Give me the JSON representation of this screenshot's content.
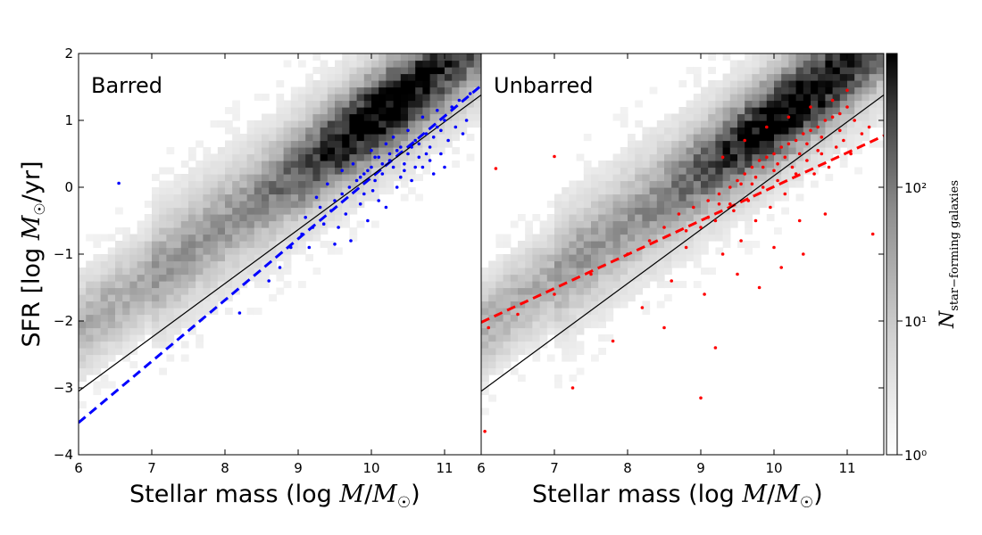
{
  "chart_data": [
    {
      "type": "scatter",
      "panel_label": "Barred",
      "panel_label_color": "#0000ff",
      "xlabel": "Stellar mass (log M/M☉)",
      "ylabel": "SFR [log M☉/yr]",
      "xlim": [
        6,
        11.5
      ],
      "ylim": [
        -4,
        2
      ],
      "xticks": [
        "6",
        "7",
        "8",
        "9",
        "10",
        "11"
      ],
      "yticks": [
        "−4",
        "−3",
        "−2",
        "−1",
        "0",
        "1",
        "2"
      ],
      "background": "2D histogram of star-forming galaxies (greyscale, log color scale)",
      "series": [
        {
          "name": "",
          "kind": "points",
          "color": "#0000ff",
          "points": [
            [
              6.55,
              0.06
            ],
            [
              8.2,
              -1.88
            ],
            [
              8.6,
              -1.4
            ],
            [
              8.75,
              -1.2
            ],
            [
              8.9,
              -0.9
            ],
            [
              9.05,
              -0.7
            ],
            [
              9.1,
              -0.45
            ],
            [
              9.2,
              -0.6
            ],
            [
              9.3,
              -0.3
            ],
            [
              9.35,
              -0.55
            ],
            [
              9.45,
              -0.35
            ],
            [
              9.5,
              -0.2
            ],
            [
              9.55,
              -0.6
            ],
            [
              9.6,
              -0.1
            ],
            [
              9.65,
              -0.4
            ],
            [
              9.7,
              0.0
            ],
            [
              9.72,
              -0.8
            ],
            [
              9.8,
              0.1
            ],
            [
              9.85,
              -0.25
            ],
            [
              9.9,
              0.2
            ],
            [
              9.95,
              -0.5
            ],
            [
              10.0,
              0.3
            ],
            [
              10.02,
              -0.05
            ],
            [
              10.05,
              0.1
            ],
            [
              10.1,
              0.45
            ],
            [
              10.15,
              0.2
            ],
            [
              10.2,
              -0.3
            ],
            [
              10.25,
              0.5
            ],
            [
              10.3,
              0.3
            ],
            [
              10.35,
              0.0
            ],
            [
              10.4,
              0.6
            ],
            [
              10.45,
              0.35
            ],
            [
              10.5,
              0.5
            ],
            [
              10.55,
              0.1
            ],
            [
              10.6,
              0.7
            ],
            [
              10.65,
              0.45
            ],
            [
              10.7,
              0.3
            ],
            [
              10.75,
              0.8
            ],
            [
              10.8,
              0.6
            ],
            [
              10.85,
              0.2
            ],
            [
              10.9,
              0.9
            ],
            [
              10.95,
              0.5
            ],
            [
              11.0,
              1.0
            ],
            [
              11.05,
              0.7
            ],
            [
              11.1,
              1.2
            ],
            [
              11.15,
              0.9
            ],
            [
              11.2,
              1.3
            ],
            [
              11.25,
              0.8
            ],
            [
              11.3,
              1.0
            ],
            [
              11.35,
              1.4
            ],
            [
              9.15,
              -0.9
            ],
            [
              9.25,
              -0.15
            ],
            [
              9.4,
              0.05
            ],
            [
              9.5,
              -0.85
            ],
            [
              9.6,
              0.25
            ],
            [
              9.75,
              0.35
            ],
            [
              9.9,
              -0.1
            ],
            [
              10.0,
              0.55
            ],
            [
              10.1,
              -0.2
            ],
            [
              10.2,
              0.65
            ],
            [
              10.3,
              0.75
            ],
            [
              10.4,
              0.15
            ],
            [
              10.5,
              0.85
            ],
            [
              10.6,
              0.3
            ],
            [
              10.7,
              1.05
            ],
            [
              10.8,
              0.4
            ],
            [
              10.9,
              1.15
            ],
            [
              11.0,
              0.3
            ],
            [
              10.25,
              0.4
            ],
            [
              10.35,
              0.55
            ],
            [
              10.45,
              0.25
            ],
            [
              10.55,
              0.6
            ],
            [
              10.15,
              0.35
            ],
            [
              10.05,
              0.45
            ],
            [
              9.95,
              0.25
            ],
            [
              9.85,
              0.15
            ],
            [
              10.65,
              0.65
            ],
            [
              10.75,
              0.5
            ],
            [
              10.85,
              0.75
            ],
            [
              10.95,
              0.85
            ]
          ]
        },
        {
          "name": "",
          "kind": "line",
          "color": "#0000ff",
          "style": "dashed",
          "x": [
            6,
            11.5
          ],
          "y": [
            -3.52,
            1.52
          ]
        },
        {
          "name": "",
          "kind": "line",
          "color": "#000000",
          "style": "solid",
          "x": [
            6,
            11.5
          ],
          "y": [
            -3.05,
            1.38
          ]
        }
      ]
    },
    {
      "type": "scatter",
      "panel_label": "Unbarred",
      "panel_label_color": "#ff0000",
      "xlabel": "Stellar mass (log M/M☉)",
      "ylabel": "",
      "xlim": [
        6,
        11.5
      ],
      "ylim": [
        -4,
        2
      ],
      "xticks": [
        "6",
        "7",
        "8",
        "9",
        "10",
        "11"
      ],
      "background": "2D histogram of star-forming galaxies (greyscale, log color scale)",
      "series": [
        {
          "name": "",
          "kind": "points",
          "color": "#ff0000",
          "points": [
            [
              6.05,
              -3.65
            ],
            [
              6.2,
              0.28
            ],
            [
              7.0,
              0.46
            ],
            [
              7.25,
              -3.0
            ],
            [
              9.0,
              -3.15
            ],
            [
              6.1,
              -2.1
            ],
            [
              6.5,
              -1.9
            ],
            [
              7.0,
              -1.6
            ],
            [
              7.5,
              -1.3
            ],
            [
              8.0,
              -1.0
            ],
            [
              8.3,
              -0.8
            ],
            [
              8.5,
              -0.6
            ],
            [
              8.6,
              -1.4
            ],
            [
              8.7,
              -0.4
            ],
            [
              8.8,
              -0.9
            ],
            [
              8.9,
              -0.3
            ],
            [
              9.0,
              -0.6
            ],
            [
              9.05,
              -1.6
            ],
            [
              9.1,
              -0.2
            ],
            [
              9.2,
              -0.5
            ],
            [
              9.25,
              -0.1
            ],
            [
              9.3,
              -1.0
            ],
            [
              9.4,
              0.0
            ],
            [
              9.45,
              -0.35
            ],
            [
              9.5,
              0.1
            ],
            [
              9.55,
              -0.8
            ],
            [
              9.6,
              0.2
            ],
            [
              9.65,
              -0.2
            ],
            [
              9.7,
              0.3
            ],
            [
              9.75,
              -0.5
            ],
            [
              9.8,
              0.4
            ],
            [
              9.85,
              0.0
            ],
            [
              9.9,
              0.45
            ],
            [
              9.95,
              -0.3
            ],
            [
              10.0,
              0.5
            ],
            [
              10.05,
              0.1
            ],
            [
              10.1,
              0.6
            ],
            [
              10.15,
              -0.1
            ],
            [
              10.2,
              0.65
            ],
            [
              10.25,
              0.3
            ],
            [
              10.3,
              0.7
            ],
            [
              10.35,
              -0.5
            ],
            [
              10.4,
              0.8
            ],
            [
              10.45,
              0.4
            ],
            [
              10.5,
              0.85
            ],
            [
              10.55,
              0.2
            ],
            [
              10.6,
              0.9
            ],
            [
              10.65,
              0.5
            ],
            [
              10.7,
              1.0
            ],
            [
              10.75,
              0.3
            ],
            [
              10.8,
              1.05
            ],
            [
              10.85,
              0.6
            ],
            [
              10.9,
              1.1
            ],
            [
              10.95,
              0.7
            ],
            [
              11.0,
              1.2
            ],
            [
              11.05,
              0.5
            ],
            [
              11.1,
              1.0
            ],
            [
              11.2,
              0.8
            ],
            [
              11.3,
              0.9
            ],
            [
              11.35,
              -0.7
            ],
            [
              10.1,
              -1.2
            ],
            [
              9.8,
              -1.5
            ],
            [
              8.5,
              -2.1
            ],
            [
              9.2,
              -2.4
            ],
            [
              7.8,
              -2.3
            ],
            [
              8.2,
              -1.8
            ],
            [
              9.5,
              -1.3
            ],
            [
              10.0,
              -0.9
            ],
            [
              10.4,
              -1.0
            ],
            [
              10.7,
              -0.4
            ],
            [
              9.3,
              0.45
            ],
            [
              9.6,
              0.7
            ],
            [
              9.9,
              0.9
            ],
            [
              10.2,
              1.05
            ],
            [
              10.5,
              1.2
            ],
            [
              10.8,
              1.3
            ],
            [
              11.0,
              1.45
            ],
            [
              10.3,
              0.2
            ],
            [
              10.0,
              0.25
            ],
            [
              9.7,
              0.05
            ],
            [
              9.4,
              -0.25
            ],
            [
              9.1,
              -0.45
            ],
            [
              8.8,
              -0.65
            ],
            [
              10.6,
              0.55
            ],
            [
              10.9,
              0.85
            ],
            [
              10.45,
              0.65
            ],
            [
              10.15,
              0.45
            ],
            [
              9.85,
              0.3
            ],
            [
              9.55,
              0.05
            ],
            [
              9.25,
              -0.25
            ],
            [
              10.35,
              0.5
            ],
            [
              10.65,
              0.75
            ],
            [
              10.05,
              0.35
            ],
            [
              9.75,
              0.15
            ]
          ]
        },
        {
          "name": "",
          "kind": "line",
          "color": "#ff0000",
          "style": "dashed",
          "x": [
            6,
            11.5
          ],
          "y": [
            -2.02,
            0.77
          ]
        },
        {
          "name": "",
          "kind": "line",
          "color": "#000000",
          "style": "solid",
          "x": [
            6,
            11.5
          ],
          "y": [
            -3.05,
            1.38
          ]
        }
      ]
    }
  ],
  "colorbar": {
    "label": "N star−forming galaxies",
    "ticks": [
      "10⁰",
      "10¹",
      "10²"
    ],
    "scale": "log",
    "range": [
      1,
      1000
    ]
  }
}
